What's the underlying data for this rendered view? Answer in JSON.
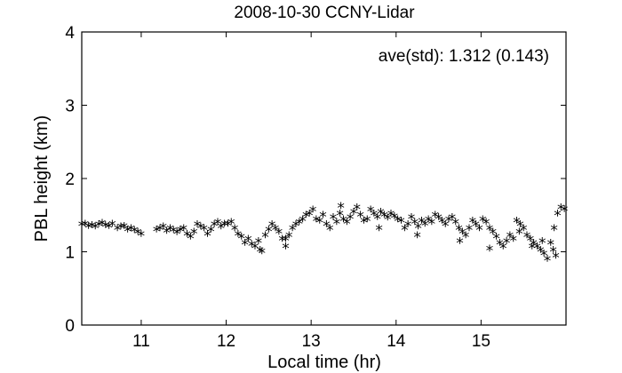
{
  "chart_data": {
    "type": "scatter",
    "title": "2008-10-30 CCNY-Lidar",
    "xlabel": "Local time (hr)",
    "ylabel": "PBL height (km)",
    "annotation": "ave(std): 1.312 (0.143)",
    "xlim": [
      10.3,
      16.0
    ],
    "ylim": [
      0,
      4
    ],
    "xticks": [
      11,
      12,
      13,
      14,
      15
    ],
    "yticks": [
      0,
      1,
      2,
      3,
      4
    ],
    "marker": "*",
    "grid": false,
    "series": [
      {
        "x": [
          10.3,
          10.34,
          10.38,
          10.42,
          10.46,
          10.5,
          10.54,
          10.58,
          10.62,
          10.66,
          10.72,
          10.76,
          10.8,
          10.84,
          10.88,
          10.92,
          10.96,
          11.0,
          11.18,
          11.22,
          11.26,
          11.3,
          11.34,
          11.38,
          11.42,
          11.46,
          11.5,
          11.54,
          11.58,
          11.62,
          11.66,
          11.7,
          11.74,
          11.78,
          11.82,
          11.86,
          11.9,
          11.94,
          11.98,
          12.02,
          12.06,
          12.1,
          12.14,
          12.18,
          12.22,
          12.26,
          12.3,
          12.34,
          12.38,
          12.42,
          12.46,
          12.5,
          12.54,
          12.58,
          12.62,
          12.66,
          12.7,
          12.74,
          12.78,
          12.82,
          12.86,
          12.9,
          12.94,
          12.98,
          13.02,
          13.06,
          13.1,
          13.14,
          13.18,
          13.22,
          13.26,
          13.3,
          13.34,
          13.38,
          13.42,
          13.46,
          13.5,
          13.54,
          13.58,
          13.62,
          13.66,
          13.7,
          13.74,
          13.78,
          13.82,
          13.86,
          13.9,
          13.94,
          13.98,
          14.02,
          14.06,
          14.1,
          14.14,
          14.18,
          14.22,
          14.26,
          14.3,
          14.34,
          14.38,
          14.42,
          14.46,
          14.5,
          14.54,
          14.58,
          14.62,
          14.66,
          14.7,
          14.74,
          14.78,
          14.82,
          14.86,
          14.9,
          14.94,
          14.98,
          15.02,
          15.06,
          15.1,
          15.14,
          15.18,
          15.22,
          15.26,
          15.3,
          15.34,
          15.38,
          15.42,
          15.46,
          15.5,
          15.54,
          15.58,
          15.62,
          15.66,
          15.7,
          15.74,
          15.78,
          15.82,
          15.86,
          15.9,
          15.94,
          15.98,
          12.4,
          12.7,
          13.35,
          13.8,
          14.25,
          14.75,
          15.1,
          15.45,
          15.6,
          15.72,
          15.85,
          15.88
        ],
        "y": [
          1.35,
          1.36,
          1.33,
          1.34,
          1.32,
          1.35,
          1.37,
          1.34,
          1.33,
          1.36,
          1.3,
          1.32,
          1.33,
          1.28,
          1.3,
          1.27,
          1.25,
          1.22,
          1.28,
          1.3,
          1.32,
          1.26,
          1.3,
          1.27,
          1.24,
          1.28,
          1.3,
          1.22,
          1.18,
          1.25,
          1.35,
          1.32,
          1.3,
          1.22,
          1.28,
          1.35,
          1.38,
          1.32,
          1.36,
          1.36,
          1.38,
          1.3,
          1.22,
          1.18,
          1.1,
          1.15,
          1.08,
          1.05,
          1.12,
          0.98,
          1.2,
          1.28,
          1.35,
          1.3,
          1.25,
          1.15,
          1.05,
          1.2,
          1.3,
          1.35,
          1.38,
          1.42,
          1.48,
          1.5,
          1.55,
          1.42,
          1.4,
          1.48,
          1.35,
          1.3,
          1.45,
          1.38,
          1.5,
          1.42,
          1.38,
          1.45,
          1.52,
          1.58,
          1.48,
          1.4,
          1.42,
          1.55,
          1.5,
          1.45,
          1.52,
          1.48,
          1.44,
          1.5,
          1.46,
          1.42,
          1.4,
          1.3,
          1.35,
          1.45,
          1.38,
          1.32,
          1.4,
          1.36,
          1.42,
          1.38,
          1.48,
          1.45,
          1.4,
          1.35,
          1.42,
          1.45,
          1.38,
          1.3,
          1.25,
          1.2,
          1.3,
          1.4,
          1.35,
          1.3,
          1.42,
          1.38,
          1.3,
          1.25,
          1.18,
          1.1,
          1.05,
          1.12,
          1.2,
          1.15,
          1.4,
          1.35,
          1.3,
          1.2,
          1.15,
          1.1,
          1.05,
          1.0,
          0.95,
          0.88,
          1.1,
          1.3,
          1.5,
          1.58,
          1.56,
          1.0,
          1.15,
          1.6,
          1.3,
          1.2,
          1.12,
          1.02,
          1.25,
          1.05,
          1.12,
          1.0,
          0.92
        ]
      }
    ]
  }
}
